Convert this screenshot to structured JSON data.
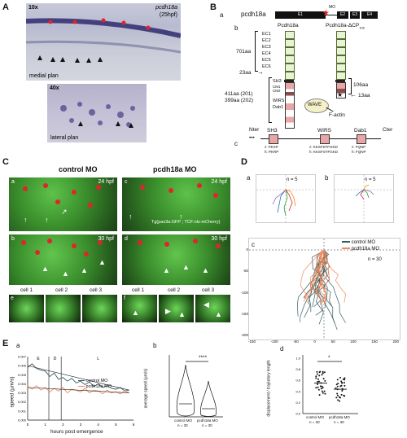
{
  "panelA": {
    "label": "A",
    "top": {
      "mag": "10x",
      "gene": "pcdh18a",
      "stage": "(25hpf)",
      "plane": "medial plan"
    },
    "bottom": {
      "mag": "40x",
      "plane": "lateral plan"
    }
  },
  "panelB": {
    "label": "B",
    "a": {
      "sub": "a",
      "name": "pcdh18a",
      "exons": [
        "E1",
        "E2",
        "E3",
        "E4"
      ],
      "mo": "MO"
    },
    "b": {
      "sub": "b",
      "col1": "Pcdh18a",
      "col2": "Pcdh18a-ΔCP",
      "col2sub": "106",
      "ec": [
        "EC1",
        "EC2",
        "EC3",
        "EC4",
        "EC5",
        "EC6"
      ],
      "len701": "701aa",
      "len23": "23aa",
      "len411": "411aa (201)",
      "len399": "399aa (202)",
      "cp": [
        "SH3",
        "CM1",
        "CM2",
        "WIRS",
        "Dab1"
      ],
      "wave": "WAVE",
      "factin": "F-actin",
      "len106": "106aa",
      "len13": "13aa"
    },
    "c": {
      "sub": "c",
      "nter": "Nter",
      "cter": "Cter",
      "dots": "•••",
      "motifs": [
        "SH3",
        "WIRS",
        "Dab1"
      ],
      "z": [
        "z: PKXP",
        "z: KKSFSTFGKD",
        "z: FQNP"
      ],
      "h": [
        "h: PKRP",
        "h: KKSFSTFGKD",
        "h: FQNP"
      ]
    }
  },
  "panelC": {
    "label": "C",
    "col1": "control MO",
    "col2": "pcdh18a MO",
    "tiles": [
      "a",
      "b",
      "c",
      "d"
    ],
    "times": [
      "24 hpf",
      "30 hpf",
      "24 hpf",
      "30 hpf"
    ],
    "legend": "Tg(pax3a:GFP ; TCF:nls-mCherry)",
    "cells": [
      "cell 1",
      "cell 2",
      "cell 3"
    ],
    "rowLabels": [
      "e",
      "f"
    ]
  },
  "panelD": {
    "label": "D",
    "a": {
      "sub": "a",
      "n": "n = 5"
    },
    "b": {
      "sub": "b",
      "n": "n = 5"
    },
    "c": {
      "sub": "c",
      "n": "n = 30"
    },
    "legend": [
      "control MO",
      "pcdh18a MO"
    ],
    "xticks": [
      "-150",
      "-100",
      "-50",
      "0",
      "50",
      "100",
      "150",
      "200"
    ],
    "yticks": [
      "0",
      "-50",
      "-100",
      "-150",
      "-200"
    ]
  },
  "panelE": {
    "label": "E",
    "a": {
      "sub": "a",
      "phases": [
        "E",
        "D",
        "L"
      ],
      "xlabel": "hours post emergence",
      "ylabel": "speed (µm/s)",
      "legend": [
        "control MO",
        "pcdh18a MO"
      ]
    },
    "b": {
      "sub": "b",
      "ylabel": "average speed (µm/s)",
      "sig": "****",
      "cats": [
        "control MO",
        "pcdh18a MO"
      ],
      "ns": [
        "n = 30",
        "n = 30"
      ]
    },
    "d": {
      "sub": "d",
      "ylabel": "displacement / trajectory length",
      "sig": "*",
      "cats": [
        "control MO",
        "pcdh18a MO"
      ],
      "ns": [
        "n = 30",
        "n = 30"
      ]
    }
  },
  "chart_data": [
    {
      "type": "line",
      "title": "",
      "xlabel": "hours post emergence",
      "ylabel": "speed (µm/s)",
      "xlim": [
        0,
        6
      ],
      "ylim": [
        0,
        0.007
      ],
      "x": [
        0,
        0.25,
        0.5,
        0.75,
        1,
        1.25,
        1.5,
        1.75,
        2,
        2.25,
        2.5,
        2.75,
        3,
        3.25,
        3.5,
        3.75,
        4,
        4.25,
        4.5,
        4.75,
        5,
        5.25,
        5.5,
        5.75
      ],
      "series": [
        {
          "name": "control MO",
          "values": [
            0.0058,
            0.0062,
            0.0057,
            0.0055,
            0.0054,
            0.0048,
            0.0052,
            0.0045,
            0.0047,
            0.0043,
            0.0046,
            0.0041,
            0.0043,
            0.0039,
            0.0042,
            0.0037,
            0.004,
            0.0036,
            0.0038,
            0.0035,
            0.0034,
            0.0036,
            0.0032,
            0.0033
          ]
        },
        {
          "name": "pcdh18a MO",
          "values": [
            0.0037,
            0.0034,
            0.0038,
            0.0033,
            0.0036,
            0.0031,
            0.0035,
            0.0032,
            0.0036,
            0.003,
            0.0034,
            0.0033,
            0.0031,
            0.0035,
            0.003,
            0.0033,
            0.0032,
            0.0029,
            0.0033,
            0.003,
            0.0031,
            0.0029,
            0.0032,
            0.003
          ]
        }
      ],
      "phase_bounds": [
        1.2,
        1.9
      ]
    },
    {
      "type": "violin",
      "ylabel": "average speed (µm/s)",
      "categories": [
        "control MO",
        "pcdh18a MO"
      ],
      "medians": [
        0.0042,
        0.0031
      ],
      "ylim": [
        0,
        0.02
      ]
    },
    {
      "type": "scatter",
      "ylabel": "displacement / trajectory length",
      "categories": [
        "control MO",
        "pcdh18a MO"
      ],
      "means": [
        0.55,
        0.44
      ],
      "ylim": [
        0,
        1.0
      ]
    }
  ],
  "colors": {
    "control": "#355d63",
    "pcdh18a": "#f08a5d",
    "gfp": "#3db83a",
    "mcherry": "#e0242a",
    "ish": "#4a3b8a"
  }
}
